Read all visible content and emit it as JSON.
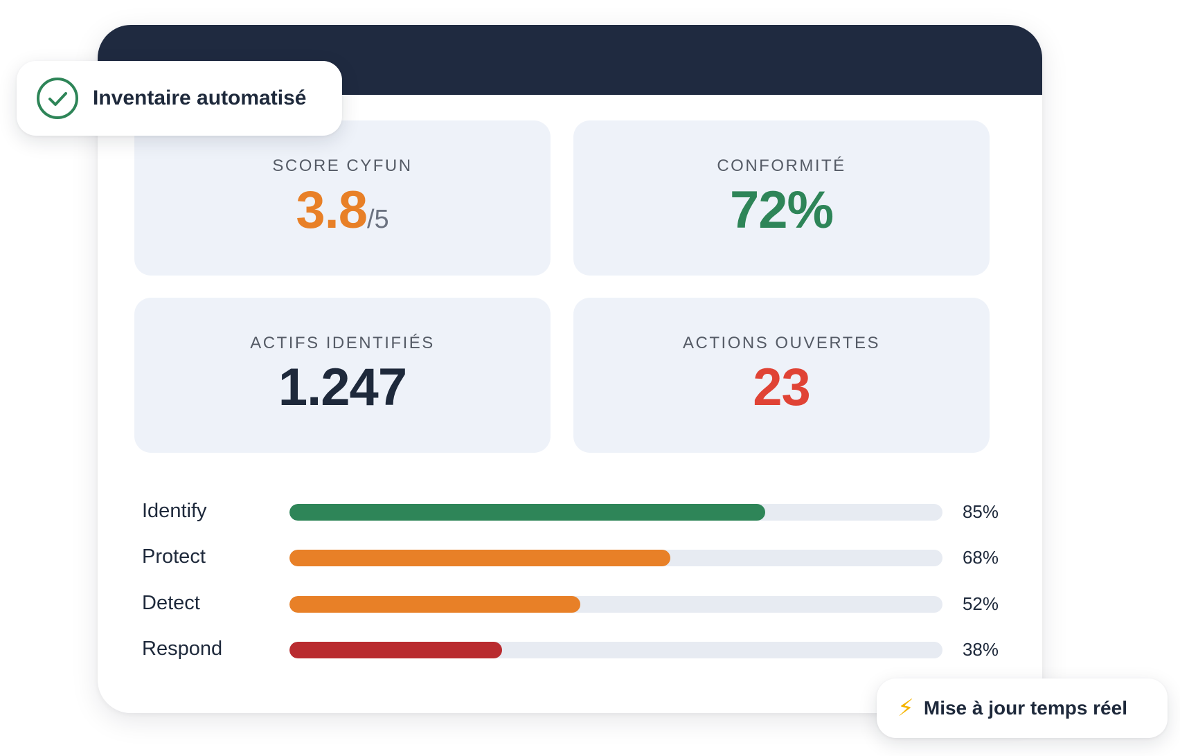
{
  "colors": {
    "header": "#1f2a40",
    "green": "#2e8558",
    "orange": "#e88027",
    "red": "#e04335",
    "dark_red": "#b92b2f",
    "navy": "#1e293b"
  },
  "badges": {
    "inventory": {
      "icon": "check-circle-icon",
      "label": "Inventaire automatisé"
    },
    "realtime": {
      "icon": "lightning-icon",
      "glyph": "⚡",
      "label": "Mise à jour temps réel"
    }
  },
  "cards": {
    "score": {
      "label": "SCORE CYFUN",
      "value": "3.8",
      "suffix": "/5"
    },
    "compliance": {
      "label": "CONFORMITÉ",
      "value": "72%"
    },
    "assets": {
      "label": "ACTIFS IDENTIFIÉS",
      "value": "1.247"
    },
    "actions": {
      "label": "ACTIONS OUVERTES",
      "value": "23"
    }
  },
  "progress": [
    {
      "label": "Identify",
      "percent": 85,
      "display": "85%",
      "color": "#2e8558"
    },
    {
      "label": "Protect",
      "percent": 68,
      "display": "68%",
      "color": "#e88027"
    },
    {
      "label": "Detect",
      "percent": 52,
      "display": "52%",
      "color": "#e88027"
    },
    {
      "label": "Respond",
      "percent": 38,
      "display": "38%",
      "color": "#b92b2f"
    }
  ]
}
